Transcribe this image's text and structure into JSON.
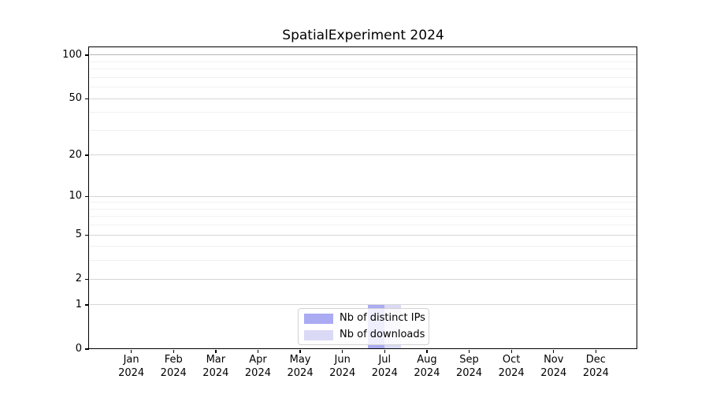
{
  "chart_data": {
    "type": "bar",
    "title": "SpatialExperiment 2024",
    "months": [
      "Jan",
      "Feb",
      "Mar",
      "Apr",
      "May",
      "Jun",
      "Jul",
      "Aug",
      "Sep",
      "Oct",
      "Nov",
      "Dec"
    ],
    "year_label": "2024",
    "series": [
      {
        "name": "Nb of distinct IPs",
        "color": "#aaabf3",
        "values": [
          0,
          0,
          0,
          0,
          0,
          0,
          1,
          0,
          0,
          0,
          0,
          0
        ]
      },
      {
        "name": "Nb of downloads",
        "color": "#dadaf6",
        "values": [
          0,
          0,
          0,
          0,
          0,
          0,
          1,
          0,
          0,
          0,
          0,
          0
        ]
      }
    ],
    "xlabel": "",
    "ylabel": "",
    "yscale": "log1p",
    "ylim": [
      0,
      113.3
    ],
    "yticks": [
      0,
      1,
      2,
      5,
      10,
      20,
      50,
      100
    ],
    "minor_gridlines": [
      3,
      4,
      6,
      7,
      8,
      9,
      30,
      40,
      60,
      70,
      80,
      90
    ],
    "grid": true,
    "legend_position": "lower center"
  },
  "colors": {
    "major_grid": "#d6d6d6",
    "minor_grid": "#f1f1f1",
    "top_grid": "#b5b5b5",
    "axis": "#000000",
    "legend_border": "#d2d2d2",
    "background": "#ffffff"
  }
}
